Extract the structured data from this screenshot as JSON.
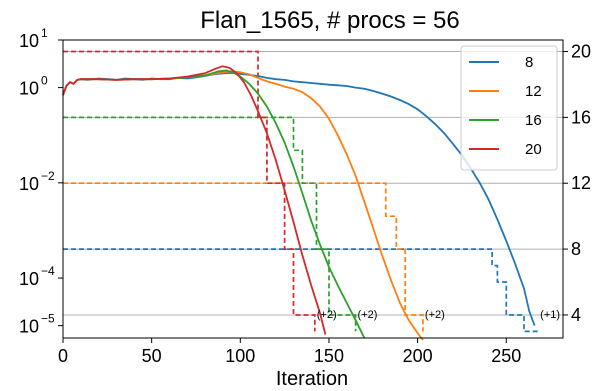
{
  "chart_data": {
    "type": "line",
    "title": "Flan_1565, # procs = 56",
    "xlabel": "Iteration",
    "ylabel": "",
    "xlim": [
      0,
      282
    ],
    "ylim": [
      5.5e-06,
      10
    ],
    "yscale": "log",
    "y2lim": [
      2.6,
      20.7
    ],
    "grid": "horizontal lines at right-axis ticks",
    "legend_position": "top-right",
    "x_ticks": [
      0,
      50,
      100,
      150,
      200,
      250
    ],
    "x_tick_labels": [
      "0",
      "50",
      "100",
      "150",
      "200",
      "250"
    ],
    "y_ticks": [
      {
        "value": 10,
        "base": "10",
        "exp": "1"
      },
      {
        "value": 1,
        "base": "10",
        "exp": "0"
      },
      {
        "value": 0.01,
        "base": "10",
        "exp": "−2"
      },
      {
        "value": 0.0001,
        "base": "10",
        "exp": "−4"
      },
      {
        "value": 1e-05,
        "base": "10",
        "exp": "−5"
      }
    ],
    "y2_ticks": [
      20,
      16,
      12,
      8,
      4
    ],
    "y2_tick_labels": [
      "20",
      "16",
      "12",
      "8",
      "4"
    ],
    "series": [
      {
        "name": "8",
        "color": "#1f77b4",
        "values": [
          [
            0,
            0.7
          ],
          [
            2,
            1.1
          ],
          [
            4,
            1.3
          ],
          [
            6,
            1.2
          ],
          [
            8,
            1.45
          ],
          [
            10,
            1.5
          ],
          [
            14,
            1.45
          ],
          [
            20,
            1.55
          ],
          [
            26,
            1.5
          ],
          [
            30,
            1.45
          ],
          [
            35,
            1.55
          ],
          [
            40,
            1.5
          ],
          [
            45,
            1.45
          ],
          [
            50,
            1.55
          ],
          [
            55,
            1.5
          ],
          [
            60,
            1.5
          ],
          [
            65,
            1.6
          ],
          [
            70,
            1.55
          ],
          [
            75,
            1.65
          ],
          [
            80,
            1.75
          ],
          [
            85,
            1.9
          ],
          [
            90,
            2.0
          ],
          [
            95,
            2.05
          ],
          [
            100,
            1.95
          ],
          [
            105,
            1.85
          ],
          [
            110,
            1.75
          ],
          [
            115,
            1.6
          ],
          [
            120,
            1.5
          ],
          [
            125,
            1.45
          ],
          [
            130,
            1.35
          ],
          [
            135,
            1.3
          ],
          [
            140,
            1.25
          ],
          [
            145,
            1.2
          ],
          [
            150,
            1.15
          ],
          [
            155,
            1.12
          ],
          [
            160,
            1.08
          ],
          [
            165,
            1.0
          ],
          [
            170,
            0.95
          ],
          [
            175,
            0.85
          ],
          [
            180,
            0.75
          ],
          [
            185,
            0.65
          ],
          [
            190,
            0.55
          ],
          [
            195,
            0.45
          ],
          [
            200,
            0.35
          ],
          [
            205,
            0.25
          ],
          [
            210,
            0.17
          ],
          [
            215,
            0.11
          ],
          [
            220,
            0.065
          ],
          [
            225,
            0.038
          ],
          [
            230,
            0.02
          ],
          [
            235,
            0.01
          ],
          [
            240,
            0.0045
          ],
          [
            245,
            0.0017
          ],
          [
            250,
            0.0006
          ],
          [
            255,
            0.0002
          ],
          [
            260,
            6e-05
          ],
          [
            263,
            2e-05
          ],
          [
            266,
            1e-05
          ]
        ]
      },
      {
        "name": "12",
        "color": "#ff7f0e",
        "values": [
          [
            0,
            0.7
          ],
          [
            2,
            1.1
          ],
          [
            4,
            1.3
          ],
          [
            6,
            1.2
          ],
          [
            8,
            1.45
          ],
          [
            10,
            1.5
          ],
          [
            20,
            1.5
          ],
          [
            30,
            1.45
          ],
          [
            40,
            1.5
          ],
          [
            50,
            1.5
          ],
          [
            60,
            1.55
          ],
          [
            70,
            1.65
          ],
          [
            80,
            1.8
          ],
          [
            90,
            2.1
          ],
          [
            95,
            2.2
          ],
          [
            100,
            2.1
          ],
          [
            105,
            1.9
          ],
          [
            110,
            1.6
          ],
          [
            115,
            1.35
          ],
          [
            120,
            1.2
          ],
          [
            125,
            1.05
          ],
          [
            130,
            0.95
          ],
          [
            135,
            0.8
          ],
          [
            140,
            0.6
          ],
          [
            145,
            0.4
          ],
          [
            150,
            0.22
          ],
          [
            155,
            0.1
          ],
          [
            160,
            0.04
          ],
          [
            165,
            0.014
          ],
          [
            170,
            0.004
          ],
          [
            175,
            0.0011
          ],
          [
            180,
            0.0003
          ],
          [
            185,
            9e-05
          ],
          [
            190,
            3e-05
          ],
          [
            195,
            1.3e-05
          ],
          [
            200,
            7e-06
          ],
          [
            203,
            5e-06
          ]
        ]
      },
      {
        "name": "16",
        "color": "#2ca02c",
        "values": [
          [
            0,
            0.7
          ],
          [
            2,
            1.1
          ],
          [
            4,
            1.3
          ],
          [
            6,
            1.2
          ],
          [
            8,
            1.45
          ],
          [
            10,
            1.5
          ],
          [
            20,
            1.5
          ],
          [
            30,
            1.45
          ],
          [
            40,
            1.5
          ],
          [
            50,
            1.5
          ],
          [
            60,
            1.55
          ],
          [
            70,
            1.65
          ],
          [
            80,
            1.8
          ],
          [
            88,
            2.2
          ],
          [
            92,
            2.3
          ],
          [
            96,
            2.1
          ],
          [
            100,
            1.7
          ],
          [
            105,
            1.2
          ],
          [
            110,
            0.75
          ],
          [
            115,
            0.4
          ],
          [
            120,
            0.18
          ],
          [
            125,
            0.07
          ],
          [
            130,
            0.022
          ],
          [
            135,
            0.006
          ],
          [
            140,
            0.0016
          ],
          [
            145,
            0.0005
          ],
          [
            150,
            0.00017
          ],
          [
            155,
            7e-05
          ],
          [
            160,
            3e-05
          ],
          [
            165,
            1.3e-05
          ],
          [
            170,
            5.5e-06
          ]
        ]
      },
      {
        "name": "20",
        "color": "#d62728",
        "values": [
          [
            0,
            0.7
          ],
          [
            2,
            1.1
          ],
          [
            4,
            1.3
          ],
          [
            6,
            1.2
          ],
          [
            8,
            1.45
          ],
          [
            10,
            1.5
          ],
          [
            20,
            1.5
          ],
          [
            30,
            1.45
          ],
          [
            40,
            1.5
          ],
          [
            50,
            1.5
          ],
          [
            60,
            1.55
          ],
          [
            70,
            1.7
          ],
          [
            80,
            2.0
          ],
          [
            86,
            2.5
          ],
          [
            90,
            2.8
          ],
          [
            94,
            2.6
          ],
          [
            98,
            2.0
          ],
          [
            102,
            1.3
          ],
          [
            106,
            0.7
          ],
          [
            110,
            0.32
          ],
          [
            115,
            0.11
          ],
          [
            120,
            0.03
          ],
          [
            125,
            0.007
          ],
          [
            130,
            0.0015
          ],
          [
            135,
            0.0003
          ],
          [
            140,
            7e-05
          ],
          [
            145,
            1.8e-05
          ],
          [
            148,
            6.5e-06
          ]
        ]
      }
    ],
    "proc_series": [
      {
        "name": "8",
        "color": "#1f77b4",
        "values": [
          [
            0,
            8
          ],
          [
            242,
            8
          ],
          [
            242,
            7
          ],
          [
            245,
            7
          ],
          [
            245,
            6
          ],
          [
            250,
            6
          ],
          [
            250,
            4
          ],
          [
            260,
            4
          ],
          [
            260,
            3
          ],
          [
            268,
            3
          ]
        ]
      },
      {
        "name": "12",
        "color": "#ff7f0e",
        "values": [
          [
            0,
            12
          ],
          [
            182,
            12
          ],
          [
            182,
            10
          ],
          [
            188,
            10
          ],
          [
            188,
            8
          ],
          [
            193,
            8
          ],
          [
            193,
            4
          ],
          [
            203,
            4
          ],
          [
            203,
            3
          ]
        ]
      },
      {
        "name": "16",
        "color": "#2ca02c",
        "values": [
          [
            0,
            16
          ],
          [
            130,
            16
          ],
          [
            130,
            14
          ],
          [
            135,
            14
          ],
          [
            135,
            12
          ],
          [
            143,
            12
          ],
          [
            143,
            8
          ],
          [
            150,
            8
          ],
          [
            150,
            4
          ],
          [
            165,
            4
          ],
          [
            165,
            3
          ]
        ]
      },
      {
        "name": "20",
        "color": "#d62728",
        "values": [
          [
            0,
            20
          ],
          [
            110,
            20
          ],
          [
            110,
            16
          ],
          [
            115,
            16
          ],
          [
            115,
            12
          ],
          [
            125,
            12
          ],
          [
            125,
            8
          ],
          [
            130,
            8
          ],
          [
            130,
            4
          ],
          [
            142,
            4
          ],
          [
            142,
            3
          ]
        ]
      }
    ],
    "annotations": [
      {
        "text": "(+1)",
        "x": 268,
        "y2": 4
      },
      {
        "text": "(+2)",
        "x": 203,
        "y2": 4
      },
      {
        "text": "(+2)",
        "x": 165,
        "y2": 4
      },
      {
        "text": "(+2)",
        "x": 142,
        "y2": 4
      }
    ]
  }
}
